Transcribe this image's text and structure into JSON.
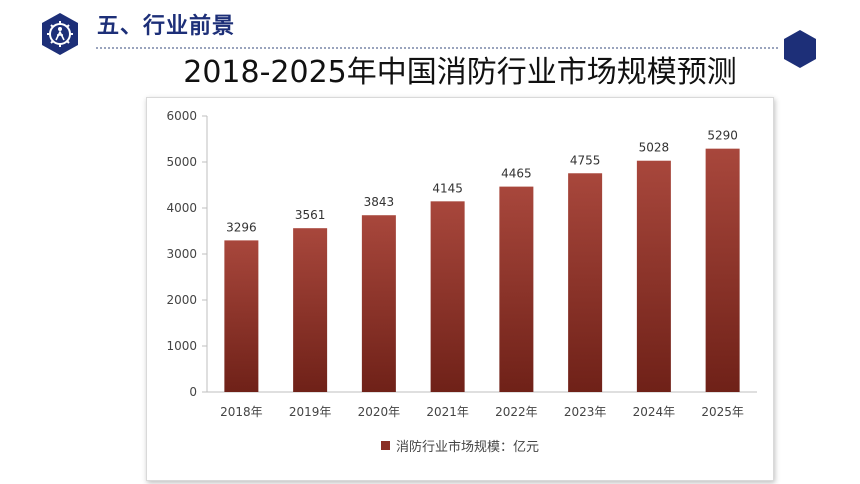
{
  "header": {
    "title": "五、行业前景",
    "logo_icon": "gear-figure-icon",
    "decoration_icon": "hexagon-icon"
  },
  "chart_data": {
    "type": "bar",
    "title": "2018-2025年中国消防行业市场规模预测",
    "categories": [
      "2018年",
      "2019年",
      "2020年",
      "2021年",
      "2022年",
      "2023年",
      "2024年",
      "2025年"
    ],
    "series": [
      {
        "name": "消防行业市场规模：亿元",
        "values": [
          3296,
          3561,
          3843,
          4145,
          4465,
          4755,
          5028,
          5290
        ]
      }
    ],
    "data_labels": [
      "3296",
      "3561",
      "3843",
      "4145",
      "4465",
      "4755",
      "5028",
      "5290"
    ],
    "y_ticks": [
      "0",
      "1000",
      "2000",
      "3000",
      "4000",
      "5000",
      "6000"
    ],
    "ylim": [
      0,
      6000
    ],
    "xlabel": "",
    "ylabel": "",
    "grid": false,
    "legend_position": "bottom",
    "colors": {
      "bar_light": "#a8473c",
      "bar_dark": "#6f2118",
      "axis": "#bfbfbf"
    }
  }
}
